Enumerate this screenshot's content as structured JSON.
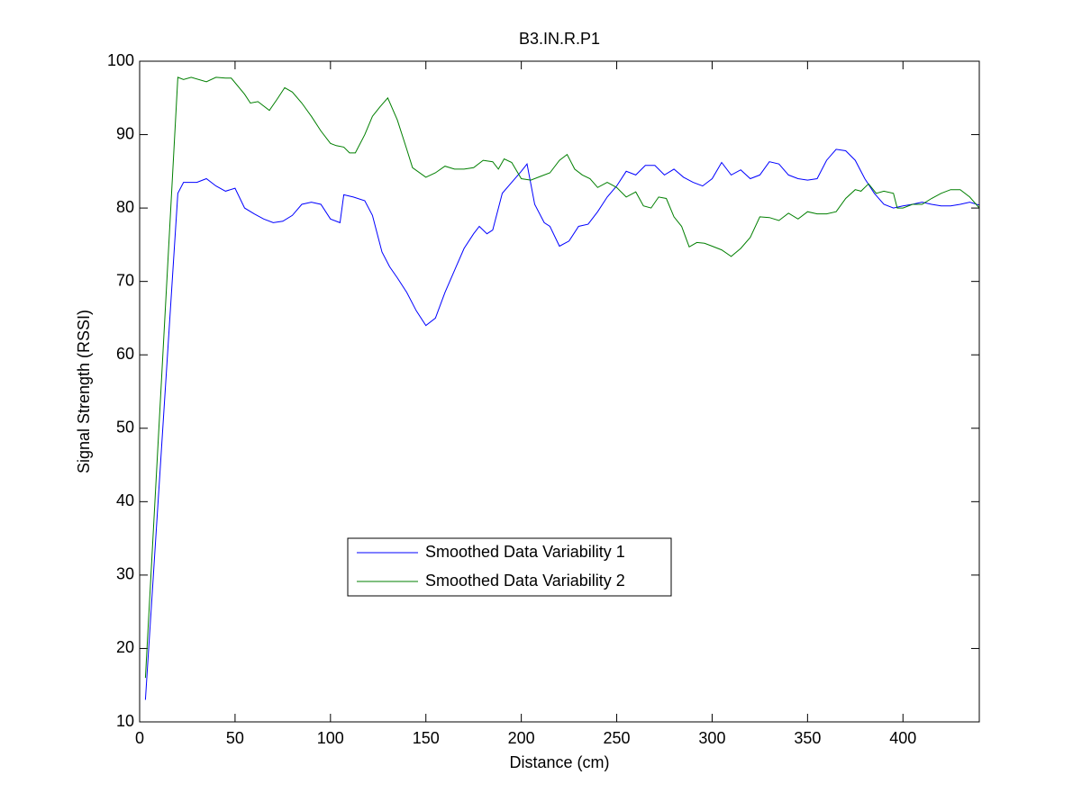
{
  "chart_data": {
    "type": "line",
    "title": "B3.IN.R.P1",
    "xlabel": "Distance (cm)",
    "ylabel": "Signal Strength (RSSI)",
    "xlim": [
      0,
      440
    ],
    "ylim": [
      10,
      100
    ],
    "xticks": [
      0,
      50,
      100,
      150,
      200,
      250,
      300,
      350,
      400
    ],
    "yticks": [
      10,
      20,
      30,
      40,
      50,
      60,
      70,
      80,
      90,
      100
    ],
    "series": [
      {
        "name": "Smoothed Data Variability 1",
        "color": "#0000ff",
        "x": [
          3,
          20,
          23,
          30,
          35,
          40,
          45,
          50,
          55,
          60,
          65,
          70,
          75,
          80,
          85,
          90,
          95,
          100,
          105,
          107,
          112,
          118,
          122,
          127,
          131,
          135,
          140,
          145,
          150,
          155,
          160,
          165,
          170,
          175,
          178,
          182,
          185,
          190,
          195,
          200,
          203,
          207,
          212,
          215,
          220,
          225,
          230,
          235,
          240,
          245,
          250,
          255,
          260,
          265,
          270,
          275,
          280,
          285,
          290,
          295,
          300,
          305,
          310,
          315,
          320,
          325,
          330,
          335,
          340,
          345,
          350,
          355,
          360,
          365,
          370,
          375,
          380,
          385,
          390,
          395,
          400,
          405,
          410,
          415,
          420,
          425,
          430,
          435,
          440
        ],
        "values": [
          13,
          82,
          83.5,
          83.5,
          84,
          83,
          82.3,
          82.7,
          80,
          79.2,
          78.5,
          78,
          78.2,
          79,
          80.5,
          80.8,
          80.5,
          78.5,
          78,
          81.8,
          81.5,
          81,
          79,
          74,
          72,
          70.5,
          68.5,
          66,
          64,
          65,
          68.5,
          71.5,
          74.5,
          76.5,
          77.5,
          76.5,
          77,
          82,
          83.5,
          85,
          86,
          80.5,
          78,
          77.5,
          74.8,
          75.5,
          77.5,
          77.8,
          79.5,
          81.5,
          83,
          85,
          84.5,
          85.8,
          85.8,
          84.5,
          85.3,
          84.2,
          83.5,
          83,
          84,
          86.2,
          84.5,
          85.2,
          84,
          84.5,
          86.3,
          86,
          84.5,
          84,
          83.8,
          84,
          86.5,
          88,
          87.8,
          86.5,
          84,
          82,
          80.5,
          80,
          80.3,
          80.5,
          80.8,
          80.5,
          80.3,
          80.3,
          80.5,
          80.8,
          80.4
        ]
      },
      {
        "name": "Smoothed Data Variability 2",
        "color": "#007f00",
        "x": [
          3,
          20,
          23,
          27,
          35,
          40,
          45,
          48,
          55,
          58,
          62,
          68,
          72,
          76,
          80,
          85,
          90,
          95,
          100,
          103,
          107,
          110,
          113,
          118,
          122,
          126,
          130,
          135,
          140,
          143,
          150,
          155,
          160,
          165,
          170,
          175,
          180,
          185,
          188,
          191,
          195,
          200,
          205,
          210,
          215,
          220,
          224,
          228,
          232,
          236,
          240,
          245,
          250,
          255,
          260,
          264,
          268,
          272,
          276,
          280,
          284,
          288,
          292,
          296,
          300,
          305,
          310,
          315,
          320,
          325,
          330,
          335,
          340,
          345,
          350,
          355,
          360,
          365,
          370,
          375,
          378,
          382,
          386,
          390,
          395,
          397,
          400,
          405,
          410,
          415,
          420,
          425,
          430,
          435,
          440
        ],
        "values": [
          16,
          97.8,
          97.5,
          97.8,
          97.2,
          97.8,
          97.7,
          97.7,
          95.5,
          94.3,
          94.5,
          93.3,
          94.8,
          96.4,
          95.8,
          94.3,
          92.5,
          90.5,
          88.8,
          88.5,
          88.3,
          87.5,
          87.5,
          90,
          92.5,
          93.8,
          95,
          92,
          88,
          85.5,
          84.2,
          84.8,
          85.7,
          85.3,
          85.3,
          85.5,
          86.5,
          86.3,
          85.3,
          86.7,
          86.2,
          84,
          83.8,
          84.3,
          84.8,
          86.5,
          87.3,
          85.3,
          84.5,
          84,
          82.8,
          83.5,
          82.8,
          81.5,
          82.2,
          80.3,
          80,
          81.5,
          81.3,
          78.8,
          77.5,
          74.7,
          75.3,
          75.2,
          74.8,
          74.3,
          73.4,
          74.5,
          76,
          78.8,
          78.7,
          78.3,
          79.3,
          78.5,
          79.5,
          79.2,
          79.2,
          79.5,
          81.3,
          82.5,
          82.3,
          83.3,
          82,
          82.3,
          82,
          80,
          80,
          80.5,
          80.5,
          81.3,
          82,
          82.5,
          82.5,
          81.5,
          80
        ]
      }
    ]
  }
}
